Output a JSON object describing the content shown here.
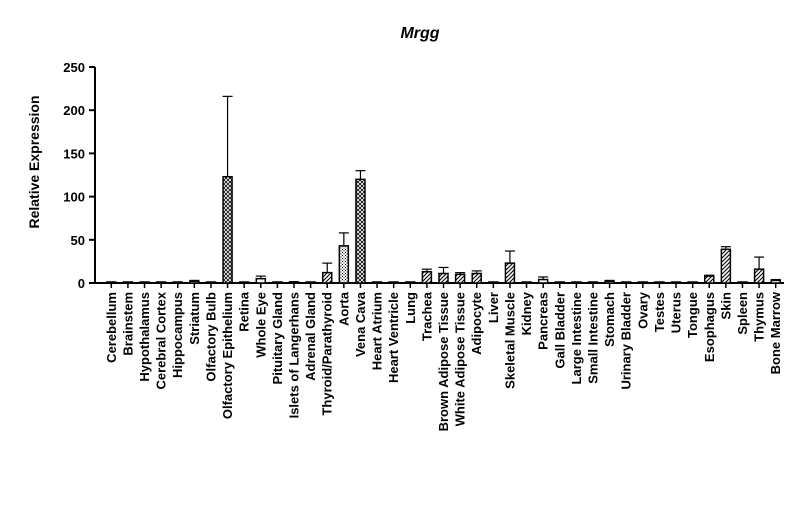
{
  "chart_data": {
    "type": "bar",
    "title": "Mrgg",
    "xlabel": "",
    "ylabel": "Relative Expression",
    "ylim": [
      0,
      250
    ],
    "yticks": [
      0,
      50,
      100,
      150,
      200,
      250
    ],
    "grid": false,
    "legend": "none",
    "categories": [
      "Cerebellum",
      "Brainstem",
      "Hypothalamus",
      "Cerebral Cortex",
      "Hippocampus",
      "Striatum",
      "Olfactory Bulb",
      "Olfactory Epithelium",
      "Retina",
      "Whole Eye",
      "Pituitary Gland",
      "Islets of Langerhans",
      "Adrenal Gland",
      "Thyroid/Parathyroid",
      "Aorta",
      "Vena Cava",
      "Heart Atrium",
      "Heart Ventricle",
      "Lung",
      "Trachea",
      "Brown Adipose Tissue",
      "White Adipose Tissue",
      "Adipocyte",
      "Liver",
      "Skeletal Muscle",
      "Kidney",
      "Pancreas",
      "Gall Bladder",
      "Large Intestine",
      "Small Intestine",
      "Stomach",
      "Urinary Bladder",
      "Ovary",
      "Testes",
      "Uterus",
      "Tongue",
      "Esophagus",
      "Skin",
      "Spleen",
      "Thymus",
      "Bone Marrow"
    ],
    "series": [
      {
        "values": [
          0.5,
          0.5,
          0.5,
          0.5,
          0.5,
          2,
          0.5,
          123,
          0.5,
          5,
          0.5,
          1,
          0.5,
          12,
          43,
          120,
          0.5,
          0.5,
          0.5,
          13,
          11,
          10,
          11,
          0.5,
          23,
          0.5,
          4,
          0.5,
          0.5,
          0.5,
          2,
          0.5,
          0.5,
          0.5,
          0.5,
          0.5,
          8,
          39,
          0.5,
          16,
          3
        ],
        "errors": [
          0,
          0,
          0,
          0,
          0,
          1,
          0,
          93,
          0,
          3,
          0,
          0.5,
          0,
          11,
          15,
          10,
          0,
          0,
          0,
          3,
          7,
          2,
          3,
          0,
          14,
          0,
          3,
          0,
          0,
          0,
          1,
          0,
          0,
          0,
          0,
          0,
          1,
          3,
          0,
          14,
          1
        ]
      }
    ]
  },
  "colors": {
    "bar_stroke": "#000000",
    "background": "#ffffff"
  }
}
